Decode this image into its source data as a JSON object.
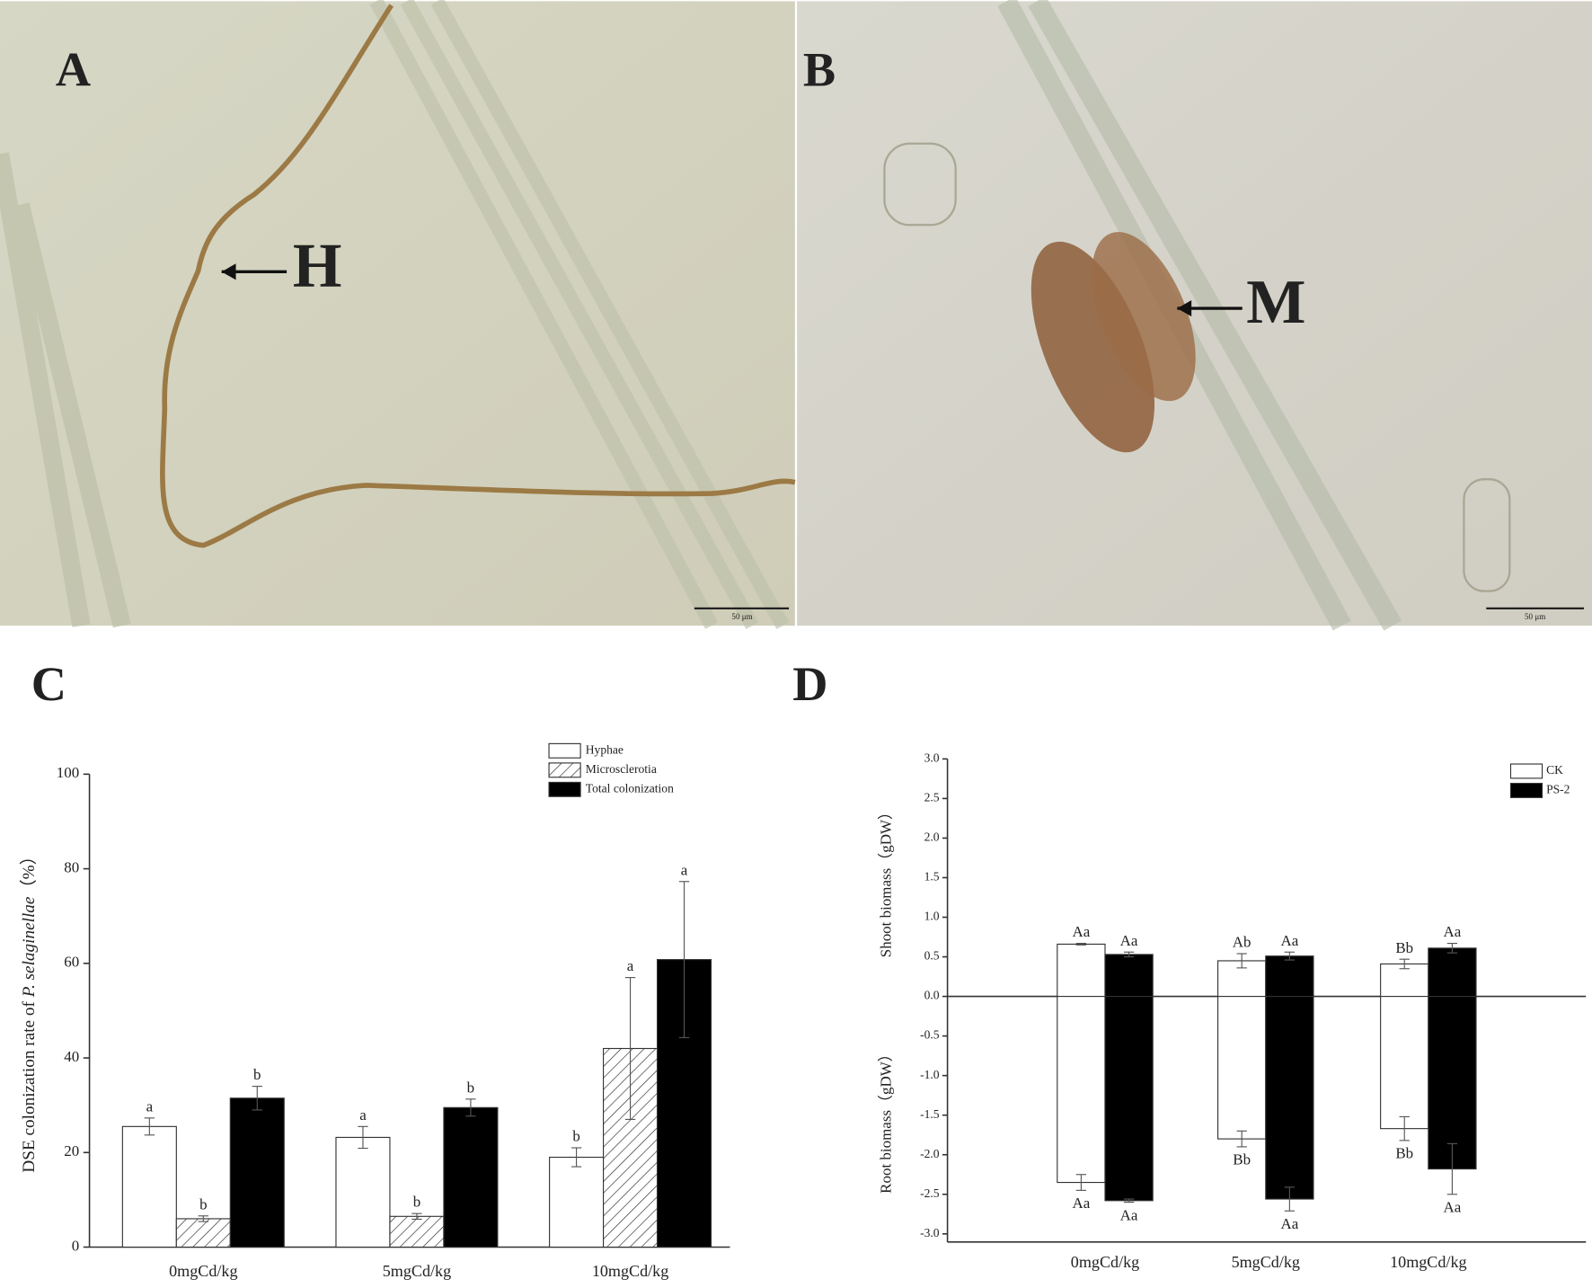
{
  "figure": {
    "panel_labels": [
      "A",
      "B",
      "C",
      "D"
    ],
    "annotations": [
      "H",
      "M"
    ],
    "scale_bars": [
      "50 μm",
      "50 μm"
    ]
  },
  "chart_data": [
    {
      "type": "bar",
      "ylabel_parts": [
        "DSE colonization rate of ",
        "P. selaginellae",
        "（%）"
      ],
      "categories": [
        "0mgCd/kg",
        "5mgCd/kg",
        "10mgCd/kg"
      ],
      "series": [
        {
          "name": "Hyphae",
          "color": "#ffffff",
          "values": [
            25.5,
            23.2,
            19.0
          ],
          "errors": [
            1.8,
            2.3,
            2.0
          ],
          "letters": [
            "a",
            "a",
            "b"
          ]
        },
        {
          "name": "Microsclerotia",
          "color": "#ffffff",
          "pattern": "hatch",
          "values": [
            6.0,
            6.5,
            42.0
          ],
          "errors": [
            0.6,
            0.6,
            15.0
          ],
          "letters": [
            "b",
            "b",
            "a"
          ]
        },
        {
          "name": "Total colonization",
          "color": "#000000",
          "values": [
            31.5,
            29.5,
            60.8
          ],
          "errors": [
            2.5,
            1.8,
            16.5
          ],
          "letters": [
            "b",
            "b",
            "a"
          ]
        }
      ],
      "ylim": [
        0,
        100
      ],
      "yticks": [
        0,
        20,
        40,
        60,
        80,
        100
      ],
      "legend": "upper right"
    },
    {
      "type": "diverging-bar",
      "ylabels": [
        "Shoot biomass（gDW）",
        "Root biomass（gDW）"
      ],
      "categories": [
        "0mgCd/kg",
        "5mgCd/kg",
        "10mgCd/kg"
      ],
      "series": [
        {
          "name": "CK",
          "color": "#ffffff",
          "shoot": [
            0.66,
            0.45,
            0.41
          ],
          "shoot_err": [
            0.01,
            0.09,
            0.06
          ],
          "shoot_letters": [
            "Aa",
            "Ab",
            "Bb"
          ],
          "root": [
            -2.35,
            -1.8,
            -1.67
          ],
          "root_err": [
            0.1,
            0.1,
            0.15
          ],
          "root_letters": [
            "Aa",
            "Bb",
            "Bb"
          ]
        },
        {
          "name": "PS-2",
          "color": "#000000",
          "shoot": [
            0.53,
            0.51,
            0.61
          ],
          "shoot_err": [
            0.03,
            0.05,
            0.06
          ],
          "shoot_letters": [
            "Aa",
            "Aa",
            "Aa"
          ],
          "root": [
            -2.58,
            -2.56,
            -2.18
          ],
          "root_err": [
            0.02,
            0.15,
            0.32
          ],
          "root_letters": [
            "Aa",
            "Aa",
            "Aa"
          ]
        }
      ],
      "ylim": [
        -3,
        3
      ],
      "yticks": [
        {
          "value": -3,
          "label": "-3.0"
        },
        {
          "value": -2.5,
          "label": "-2.5"
        },
        {
          "value": -2,
          "label": "-2.0"
        },
        {
          "value": -1.5,
          "label": "-1.5"
        },
        {
          "value": -1,
          "label": "-1.0"
        },
        {
          "value": -0.5,
          "label": "-0.5"
        },
        {
          "value": 0,
          "label": "0.0"
        },
        {
          "value": 0.5,
          "label": "0.5"
        },
        {
          "value": 1,
          "label": "1.0"
        },
        {
          "value": 1.5,
          "label": "1.5"
        },
        {
          "value": 2,
          "label": "2.0"
        },
        {
          "value": 2.5,
          "label": "2.5"
        },
        {
          "value": 3,
          "label": "3.0"
        }
      ],
      "legend": "upper right"
    }
  ]
}
